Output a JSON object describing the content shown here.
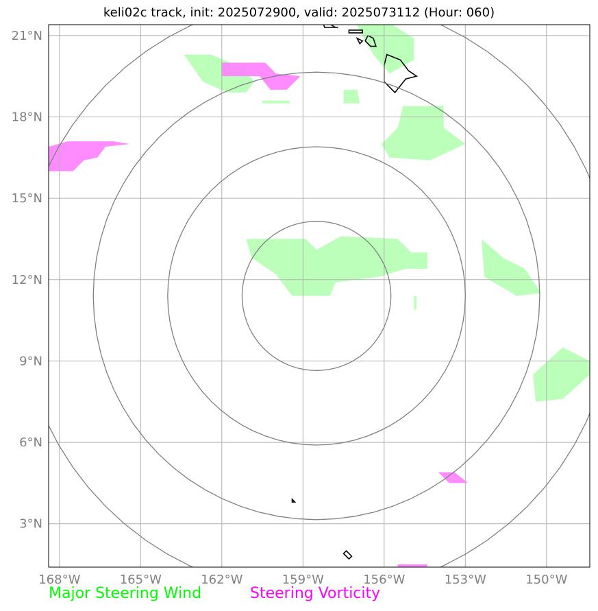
{
  "title": "keli02c track, init: 2025072900, valid: 2025073112 (Hour: 060)",
  "legend": {
    "wind": {
      "label": "Major Steering Wind",
      "color": "#00ff00"
    },
    "vorticity": {
      "label": "Steering Vorticity",
      "color": "#ff00ff"
    }
  },
  "map": {
    "lon_range": [
      -168.4,
      -148.4
    ],
    "lat_range": [
      1.4,
      21.4
    ],
    "lon_ticks": [
      {
        "value": -168,
        "label": "168°W"
      },
      {
        "value": -165,
        "label": "165°W"
      },
      {
        "value": -162,
        "label": "162°W"
      },
      {
        "value": -159,
        "label": "159°W"
      },
      {
        "value": -156,
        "label": "156°W"
      },
      {
        "value": -153,
        "label": "153°W"
      },
      {
        "value": -150,
        "label": "150°W"
      }
    ],
    "lat_ticks": [
      {
        "value": 3,
        "label": "3°N"
      },
      {
        "value": 6,
        "label": "6°N"
      },
      {
        "value": 9,
        "label": "9°N"
      },
      {
        "value": 12,
        "label": "12°N"
      },
      {
        "value": 15,
        "label": "15°N"
      },
      {
        "value": 18,
        "label": "18°N"
      },
      {
        "value": 21,
        "label": "21°N"
      }
    ],
    "range_rings_center": {
      "lon": -158.5,
      "lat": 11.4
    },
    "range_rings_radius_deg": [
      2.75,
      5.5,
      8.25,
      11.0
    ],
    "colors": {
      "wind_fill": "#bbffbb",
      "vort_fill": "#ff80ff",
      "grid": "#b0b0b0",
      "ring": "#808080",
      "coast": "#000000"
    },
    "wind_areas": [
      [
        [
          -163.4,
          20.3
        ],
        [
          -162.4,
          20.3
        ],
        [
          -161.2,
          19.8
        ],
        [
          -160.8,
          19.3
        ],
        [
          -161.1,
          18.9
        ],
        [
          -161.8,
          18.9
        ],
        [
          -162.7,
          19.3
        ]
      ],
      [
        [
          -157.0,
          21.4
        ],
        [
          -155.7,
          21.4
        ],
        [
          -154.9,
          20.9
        ],
        [
          -154.9,
          20.1
        ],
        [
          -155.8,
          19.6
        ],
        [
          -156.4,
          20.3
        ],
        [
          -156.8,
          21.0
        ]
      ],
      [
        [
          -155.3,
          18.4
        ],
        [
          -153.8,
          18.4
        ],
        [
          -153.8,
          17.6
        ],
        [
          -153.0,
          17.0
        ],
        [
          -154.3,
          16.4
        ],
        [
          -155.8,
          16.5
        ],
        [
          -156.1,
          17.0
        ],
        [
          -155.5,
          17.6
        ]
      ],
      [
        [
          -161.1,
          13.5
        ],
        [
          -158.9,
          13.5
        ],
        [
          -158.5,
          13.1
        ],
        [
          -157.6,
          13.6
        ],
        [
          -155.5,
          13.5
        ],
        [
          -155.0,
          13.0
        ],
        [
          -154.4,
          13.0
        ],
        [
          -154.4,
          12.4
        ],
        [
          -155.2,
          12.4
        ],
        [
          -156.2,
          12.1
        ],
        [
          -157.8,
          11.9
        ],
        [
          -158.0,
          11.4
        ],
        [
          -159.4,
          11.4
        ],
        [
          -160.0,
          12.2
        ],
        [
          -160.9,
          12.8
        ]
      ],
      [
        [
          -152.4,
          13.5
        ],
        [
          -151.6,
          12.8
        ],
        [
          -150.8,
          12.4
        ],
        [
          -150.2,
          11.5
        ],
        [
          -151.1,
          11.4
        ],
        [
          -152.3,
          12.1
        ]
      ],
      [
        [
          -149.4,
          9.5
        ],
        [
          -148.4,
          9.0
        ],
        [
          -148.4,
          8.5
        ],
        [
          -149.4,
          7.6
        ],
        [
          -150.4,
          7.5
        ],
        [
          -150.5,
          8.5
        ]
      ],
      [
        [
          -157.5,
          19.0
        ],
        [
          -157.0,
          19.0
        ],
        [
          -156.9,
          18.5
        ],
        [
          -157.5,
          18.5
        ]
      ],
      [
        [
          -160.5,
          18.6
        ],
        [
          -159.5,
          18.6
        ],
        [
          -159.5,
          18.5
        ],
        [
          -160.5,
          18.5
        ]
      ],
      [
        [
          -154.9,
          11.4
        ],
        [
          -154.8,
          11.4
        ],
        [
          -154.8,
          10.9
        ],
        [
          -154.9,
          10.9
        ]
      ]
    ],
    "vort_areas": [
      [
        [
          -168.4,
          16.9
        ],
        [
          -167.7,
          17.1
        ],
        [
          -166.0,
          17.1
        ],
        [
          -165.4,
          17.0
        ],
        [
          -166.3,
          16.9
        ],
        [
          -166.6,
          16.5
        ],
        [
          -167.1,
          16.4
        ],
        [
          -167.5,
          16.0
        ],
        [
          -168.4,
          16.0
        ]
      ],
      [
        [
          -162.0,
          20.0
        ],
        [
          -160.4,
          20.0
        ],
        [
          -160.0,
          19.6
        ],
        [
          -159.1,
          19.5
        ],
        [
          -159.6,
          19.0
        ],
        [
          -160.2,
          19.0
        ],
        [
          -160.6,
          19.5
        ],
        [
          -162.0,
          19.5
        ]
      ],
      [
        [
          -154.0,
          4.9
        ],
        [
          -153.4,
          4.9
        ],
        [
          -152.9,
          4.5
        ],
        [
          -153.6,
          4.5
        ]
      ],
      [
        [
          -155.5,
          1.5
        ],
        [
          -154.4,
          1.5
        ],
        [
          -154.4,
          1.4
        ],
        [
          -155.5,
          1.4
        ]
      ]
    ],
    "coast_lines": [
      [
        [
          -155.9,
          20.3
        ],
        [
          -155.4,
          20.1
        ],
        [
          -155.1,
          19.7
        ],
        [
          -154.8,
          19.5
        ],
        [
          -155.2,
          19.4
        ],
        [
          -155.6,
          18.9
        ],
        [
          -156.0,
          19.3
        ],
        [
          -156.0,
          19.9
        ]
      ],
      [
        [
          -156.6,
          21.0
        ],
        [
          -156.4,
          20.9
        ],
        [
          -156.3,
          20.6
        ],
        [
          -156.5,
          20.6
        ],
        [
          -156.7,
          20.8
        ]
      ],
      [
        [
          -158.3,
          21.6
        ],
        [
          -157.8,
          21.3
        ],
        [
          -157.7,
          21.3
        ],
        [
          -158.2,
          21.3
        ]
      ],
      [
        [
          -157.3,
          21.2
        ],
        [
          -156.8,
          21.2
        ],
        [
          -156.8,
          21.1
        ],
        [
          -157.3,
          21.1
        ]
      ],
      [
        [
          -157.0,
          20.9
        ],
        [
          -156.8,
          20.8
        ],
        [
          -156.9,
          20.7
        ]
      ],
      [
        [
          -159.4,
          3.9
        ],
        [
          -159.3,
          3.8
        ],
        [
          -159.4,
          3.8
        ]
      ],
      [
        [
          -157.4,
          2.0
        ],
        [
          -157.2,
          1.8
        ],
        [
          -157.3,
          1.7
        ],
        [
          -157.5,
          1.9
        ]
      ]
    ]
  }
}
